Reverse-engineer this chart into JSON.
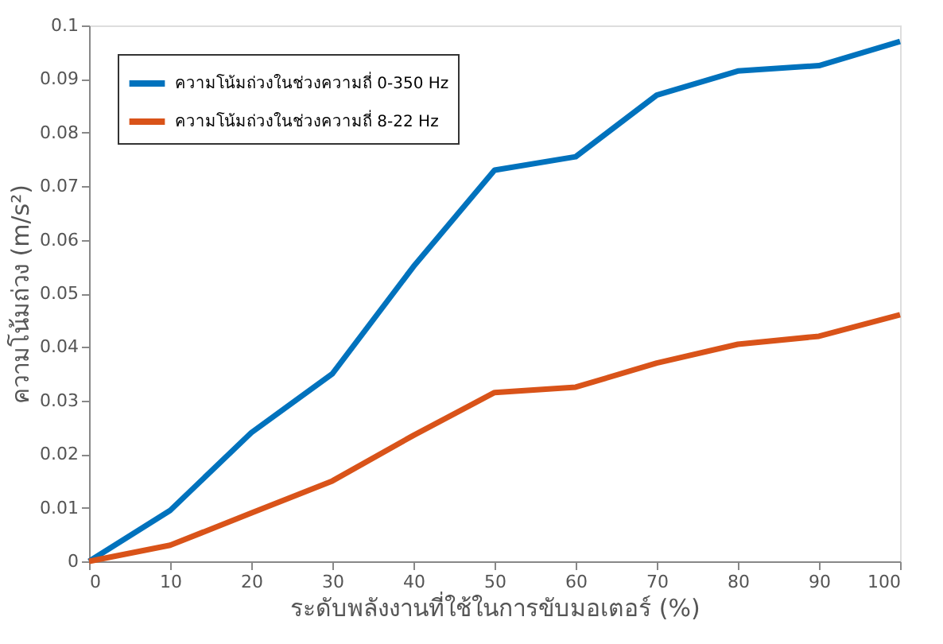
{
  "chart_data": {
    "type": "line",
    "xlabel": "ระดับพลังงานที่ใช้ในการขับมอเตอร์ (%)",
    "ylabel": "ความโน้มถ่วง (m/s²)",
    "x": [
      0,
      10,
      20,
      30,
      40,
      50,
      60,
      70,
      80,
      90,
      100
    ],
    "series": [
      {
        "name": "ความโน้มถ่วงในช่วงความถี่ 0-350 Hz",
        "color": "#0072bd",
        "values": [
          0,
          0.0095,
          0.024,
          0.035,
          0.055,
          0.073,
          0.0755,
          0.087,
          0.0915,
          0.0925,
          0.097
        ]
      },
      {
        "name": "ความโน้มถ่วงในช่วงความถี่ 8-22 Hz",
        "color": "#d95319",
        "values": [
          0,
          0.003,
          0.009,
          0.015,
          0.0235,
          0.0315,
          0.0325,
          0.037,
          0.0405,
          0.042,
          0.046
        ]
      }
    ],
    "xlim": [
      0,
      100
    ],
    "xticks": [
      0,
      10,
      20,
      30,
      40,
      50,
      60,
      70,
      80,
      90,
      100
    ],
    "ylim": [
      0,
      0.1
    ],
    "yticks": [
      0,
      0.01,
      0.02,
      0.03,
      0.04,
      0.05,
      0.06,
      0.07,
      0.08,
      0.09,
      0.1
    ],
    "grid": false,
    "legend": "top left",
    "marker": "none",
    "line_style": "solid"
  }
}
